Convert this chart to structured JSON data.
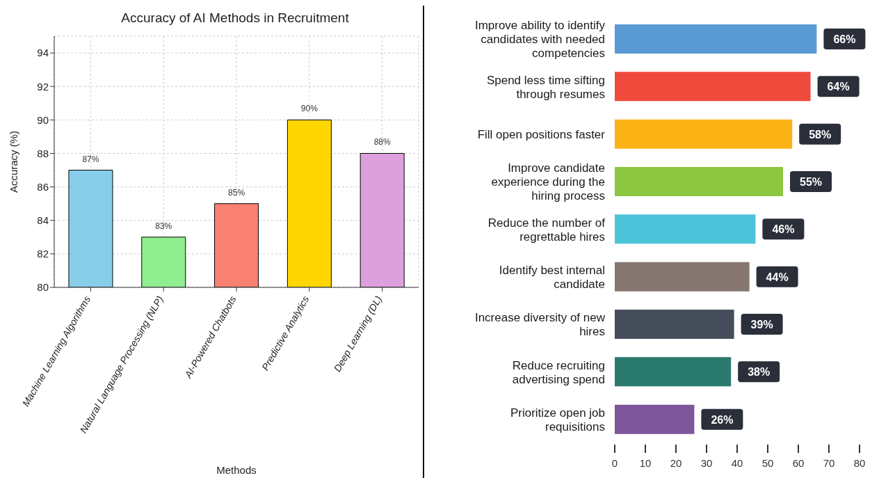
{
  "chart_data": [
    {
      "type": "bar",
      "title": "Accuracy of AI Methods in Recruitment",
      "xlabel": "Methods",
      "ylabel": "Accuracy (%)",
      "categories": [
        "Machine Learning Algorithms",
        "Natural Language Processing (NLP)",
        "AI-Powered Chatbots",
        "Predictive Analytics",
        "Deep Learning (DL)"
      ],
      "values": [
        87,
        83,
        85,
        90,
        88
      ],
      "colors": [
        "#87ceeb",
        "#90ee90",
        "#fa8072",
        "#ffd700",
        "#dda0dd"
      ],
      "value_labels": [
        "87%",
        "83%",
        "85%",
        "90%",
        "88%"
      ],
      "ylim": [
        80,
        95
      ],
      "yticks": [
        80,
        82,
        84,
        86,
        88,
        90,
        92,
        94
      ],
      "grid": true
    },
    {
      "type": "bar",
      "orientation": "horizontal",
      "categories": [
        "Improve ability to identify candidates with needed competencies",
        "Spend less time sifting through resumes",
        "Fill open positions faster",
        "Improve candidate experience during the hiring process",
        "Reduce the number of regrettable hires",
        "Identify best internal candidate",
        "Increase diversity of new hires",
        "Reduce recruiting advertising spend",
        "Prioritize open job requisitions"
      ],
      "values": [
        66,
        64,
        58,
        55,
        46,
        44,
        39,
        38,
        26
      ],
      "colors": [
        "#5b9bd5",
        "#f04a3c",
        "#fbb315",
        "#8dc63f",
        "#4bc4d9",
        "#85766f",
        "#454c5a",
        "#2b7a6e",
        "#7d559b"
      ],
      "value_labels": [
        "66%",
        "64%",
        "58%",
        "55%",
        "46%",
        "44%",
        "39%",
        "38%",
        "26%"
      ],
      "xlim": [
        0,
        80
      ],
      "xticks": [
        0,
        10,
        20,
        30,
        40,
        50,
        60,
        70,
        80
      ]
    }
  ]
}
